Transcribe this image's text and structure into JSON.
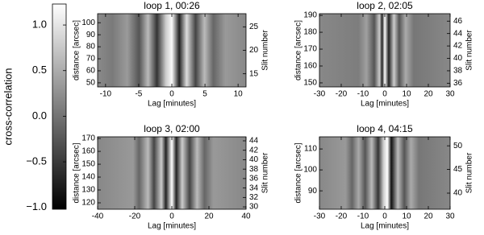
{
  "chart_data": [
    {
      "type": "colorbar",
      "label": "cross-correlation",
      "ylim": [
        -1.02,
        1.23
      ],
      "yticks": [
        {
          "value": 1,
          "label": "1.0"
        },
        {
          "value": 0.5,
          "label": "0.5"
        },
        {
          "value": 0,
          "label": "0.0"
        },
        {
          "value": -0.5,
          "label": "−0.5"
        },
        {
          "value": -1,
          "label": "−1.0"
        }
      ]
    },
    {
      "type": "heatmap",
      "title": "loop 1, 00:26",
      "xlabel": "Lag [minutes]",
      "ylabel": "distance [arcsec]",
      "y2label": "Slit number",
      "xlim": [
        -11.2,
        11.2
      ],
      "xticks": [
        -10,
        -5,
        0,
        5,
        10
      ],
      "ylim": [
        46.6,
        107.5
      ],
      "yticks": [
        50,
        60,
        70,
        80,
        90,
        100
      ],
      "y2lim": [
        12.2,
        27.8
      ],
      "y2ticks": [
        15,
        20,
        25
      ]
    },
    {
      "type": "heatmap",
      "title": "loop 2, 02:05",
      "xlabel": "Lag [minutes]",
      "ylabel": "distance [arcsec]",
      "y2label": "Slit number",
      "xlim": [
        -30,
        30
      ],
      "xticks": [
        -30,
        -20,
        -10,
        0,
        10,
        20,
        30
      ],
      "ylim": [
        147.6,
        191
      ],
      "yticks": [
        150,
        160,
        170,
        180,
        190
      ],
      "y2lim": [
        35.4,
        47.2
      ],
      "y2ticks": [
        36,
        38,
        40,
        42,
        44,
        46
      ]
    },
    {
      "type": "heatmap",
      "title": "loop 3, 02:00",
      "xlabel": "Lag [minutes]",
      "ylabel": "distance [arcsec]",
      "y2label": "Slit number",
      "xlim": [
        -40,
        40
      ],
      "xticks": [
        -40,
        -20,
        0,
        20,
        40
      ],
      "ylim": [
        115,
        171.3
      ],
      "yticks": [
        120,
        130,
        140,
        150,
        160,
        170
      ],
      "y2lim": [
        29.5,
        44.85
      ],
      "y2ticks": [
        30,
        32,
        34,
        36,
        38,
        40,
        42,
        44
      ]
    },
    {
      "type": "heatmap",
      "title": "loop 4, 04:15",
      "xlabel": "Lag [minutes]",
      "ylabel": "distance [arcsec]",
      "y2label": "Slit number",
      "xlim": [
        -30,
        30
      ],
      "xticks": [
        -30,
        -20,
        -10,
        0,
        10,
        20,
        30
      ],
      "ylim": [
        81.2,
        115.8
      ],
      "yticks": [
        90,
        100,
        110
      ],
      "y2lim": [
        36.6,
        51.9
      ],
      "y2ticks": [
        40,
        45,
        50
      ]
    }
  ]
}
